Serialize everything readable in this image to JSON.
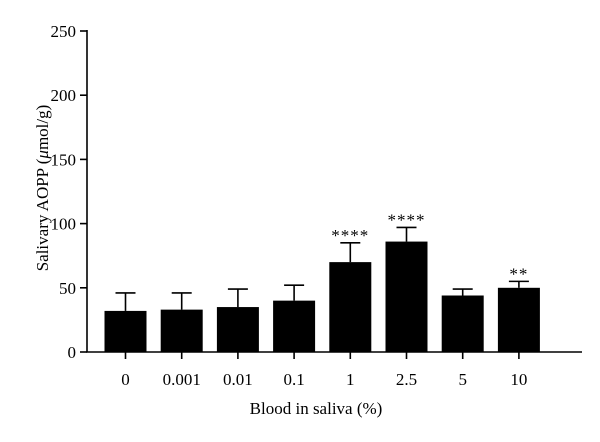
{
  "chart_data": {
    "type": "bar",
    "title": "",
    "xlabel": "Blood in saliva (%)",
    "ylabel": "Salivary AOPP (μmol/g)",
    "ylabel_parts": {
      "pre": "Salivary AOPP (",
      "mu": "μ",
      "post": "mol/g)"
    },
    "categories": [
      "0",
      "0.001",
      "0.01",
      "0.1",
      "1",
      "2.5",
      "5",
      "10"
    ],
    "values": [
      32,
      33,
      35,
      40,
      70,
      86,
      44,
      50
    ],
    "error_upper": [
      46,
      46,
      49,
      52,
      85,
      97,
      49,
      55
    ],
    "significance": [
      "",
      "",
      "",
      "",
      "****",
      "****",
      "",
      "**"
    ],
    "ylim": [
      0,
      250
    ],
    "yticks": [
      0,
      50,
      100,
      150,
      200,
      250
    ],
    "grid": false,
    "legend": "none",
    "bar_color": "#000000"
  }
}
